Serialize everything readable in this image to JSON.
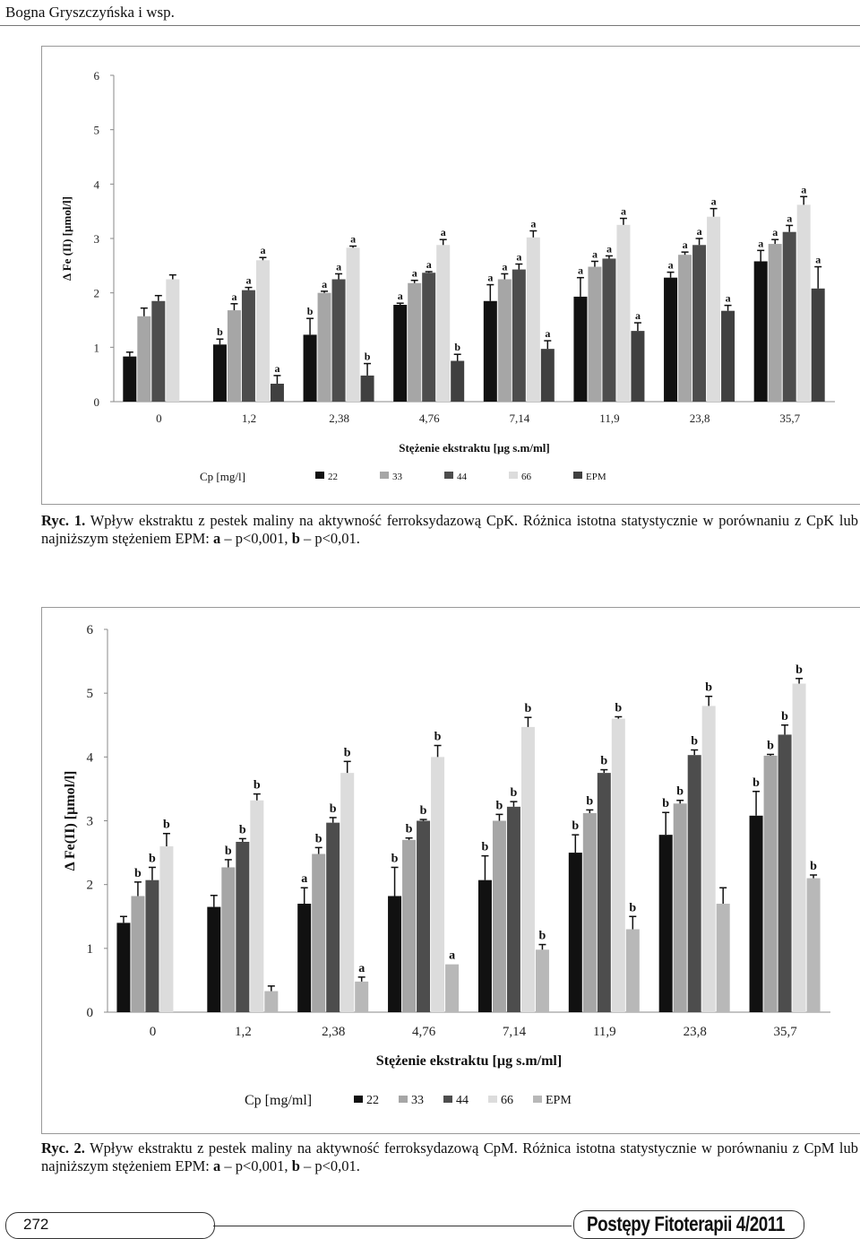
{
  "header": {
    "authors": "Bogna Gryszczyńska i wsp."
  },
  "figure1": {
    "caption_label": "Ryc. 1.",
    "caption_text": "Wpływ ekstraktu z pestek maliny na aktywność ferroksydazową CpK. Różnica istotna statystycznie w porównaniu z CpK lub najniższym stężeniem EPM:",
    "caption_a": "a",
    "caption_a_text": "– p<0,001,",
    "caption_b": "b",
    "caption_b_text": "– p<0,01.",
    "colors": [
      "#111111",
      "#a6a6a6",
      "#4d4d4d",
      "#dcdcdc",
      "#404040"
    ]
  },
  "figure2": {
    "caption_label": "Ryc. 2.",
    "caption_text": "Wpływ ekstraktu z pestek maliny na aktywność ferroksydazową CpM. Różnica istotna statystycznie w porównaniu z CpM lub najniższym stężeniem EPM:",
    "caption_a": "a",
    "caption_a_text": "– p<0,001,",
    "caption_b": "b",
    "caption_b_text": "– p<0,01.",
    "colors": [
      "#111111",
      "#a6a6a6",
      "#4d4d4d",
      "#dcdcdc",
      "#b8b8b8"
    ]
  },
  "chart_data": [
    {
      "type": "bar",
      "xlabel": "Stężenie ekstraktu [µg s.m/ml]",
      "ylabel": "Δ Fe (II) [µmol/l]",
      "ylim": [
        0,
        6
      ],
      "yticks": [
        "0",
        "1",
        "2",
        "3",
        "4",
        "5",
        "6"
      ],
      "categories": [
        "0",
        "1,2",
        "2,38",
        "4,76",
        "7,14",
        "11,9",
        "23,8",
        "35,7"
      ],
      "legend_title": "Cp [mg/l]",
      "legend_position": "bottom",
      "series": [
        {
          "name": "22",
          "values": [
            0.83,
            1.05,
            1.23,
            1.78,
            1.85,
            1.93,
            2.28,
            2.58
          ],
          "errors": [
            0.08,
            0.1,
            0.3,
            0.03,
            0.3,
            0.35,
            0.1,
            0.2
          ],
          "labels": [
            "",
            "b",
            "b",
            "a",
            "a",
            "a",
            "a",
            "a"
          ]
        },
        {
          "name": "33",
          "values": [
            1.57,
            1.68,
            2.0,
            2.18,
            2.25,
            2.48,
            2.7,
            2.9
          ],
          "errors": [
            0.15,
            0.12,
            0.03,
            0.05,
            0.1,
            0.1,
            0.05,
            0.08
          ],
          "labels": [
            "",
            "a",
            "a",
            "a",
            "a",
            "a",
            "a",
            "a"
          ]
        },
        {
          "name": "44",
          "values": [
            1.85,
            2.05,
            2.25,
            2.37,
            2.43,
            2.63,
            2.88,
            3.12
          ],
          "errors": [
            0.1,
            0.05,
            0.1,
            0.02,
            0.1,
            0.05,
            0.12,
            0.12
          ],
          "labels": [
            "",
            "a",
            "a",
            "a",
            "a",
            "a",
            "a",
            "a"
          ]
        },
        {
          "name": "66",
          "values": [
            2.25,
            2.6,
            2.83,
            2.88,
            3.02,
            3.25,
            3.4,
            3.62
          ],
          "errors": [
            0.08,
            0.05,
            0.03,
            0.1,
            0.12,
            0.12,
            0.15,
            0.15
          ],
          "labels": [
            "",
            "a",
            "a",
            "a",
            "a",
            "a",
            "a",
            "a"
          ]
        },
        {
          "name": "EPM",
          "values": [
            0.0,
            0.33,
            0.48,
            0.75,
            0.97,
            1.3,
            1.67,
            2.08
          ],
          "errors": [
            0.0,
            0.15,
            0.22,
            0.12,
            0.15,
            0.15,
            0.1,
            0.4
          ],
          "labels": [
            "",
            "a",
            "b",
            "b",
            "a",
            "a",
            "a",
            "a"
          ]
        }
      ]
    },
    {
      "type": "bar",
      "xlabel": "Stężenie ekstraktu [µg s.m/ml]",
      "ylabel": "Δ Fe(II) [µmol/l]",
      "ylim": [
        0,
        6
      ],
      "yticks": [
        "0",
        "1",
        "2",
        "3",
        "4",
        "5",
        "6"
      ],
      "categories": [
        "0",
        "1,2",
        "2,38",
        "4,76",
        "7,14",
        "11,9",
        "23,8",
        "35,7"
      ],
      "legend_title": "Cp [mg/ml]",
      "legend_position": "bottom",
      "series": [
        {
          "name": "22",
          "values": [
            1.4,
            1.65,
            1.7,
            1.82,
            2.07,
            2.5,
            2.78,
            3.08
          ],
          "errors": [
            0.1,
            0.18,
            0.25,
            0.45,
            0.38,
            0.28,
            0.35,
            0.38
          ],
          "labels": [
            "",
            "",
            "a",
            "b",
            "b",
            "b",
            "b",
            "b"
          ]
        },
        {
          "name": "33",
          "values": [
            1.82,
            2.27,
            2.48,
            2.7,
            3.0,
            3.12,
            3.27,
            4.02
          ],
          "errors": [
            0.22,
            0.12,
            0.1,
            0.03,
            0.1,
            0.05,
            0.05,
            0.02
          ],
          "labels": [
            "b",
            "b",
            "b",
            "b",
            "b",
            "b",
            "b",
            "b"
          ]
        },
        {
          "name": "44",
          "values": [
            2.07,
            2.67,
            2.97,
            3.0,
            3.22,
            3.75,
            4.03,
            4.35
          ],
          "errors": [
            0.2,
            0.05,
            0.08,
            0.02,
            0.08,
            0.05,
            0.08,
            0.15
          ],
          "labels": [
            "b",
            "b",
            "b",
            "b",
            "b",
            "b",
            "b",
            "b"
          ]
        },
        {
          "name": "66",
          "values": [
            2.6,
            3.32,
            3.75,
            4.0,
            4.47,
            4.6,
            4.8,
            5.15
          ],
          "errors": [
            0.2,
            0.1,
            0.18,
            0.18,
            0.15,
            0.03,
            0.15,
            0.08
          ],
          "labels": [
            "b",
            "b",
            "b",
            "b",
            "b",
            "b",
            "b",
            "b"
          ]
        },
        {
          "name": "EPM",
          "values": [
            0.0,
            0.33,
            0.48,
            0.75,
            0.98,
            1.3,
            1.7,
            2.1
          ],
          "errors": [
            0.0,
            0.08,
            0.07,
            0.0,
            0.08,
            0.2,
            0.25,
            0.05
          ],
          "labels": [
            "",
            "",
            "a",
            "a",
            "b",
            "b",
            "",
            "b"
          ]
        }
      ]
    }
  ],
  "footer": {
    "page_number": "272",
    "journal": "Postępy Fitoterapii 4/2011"
  }
}
